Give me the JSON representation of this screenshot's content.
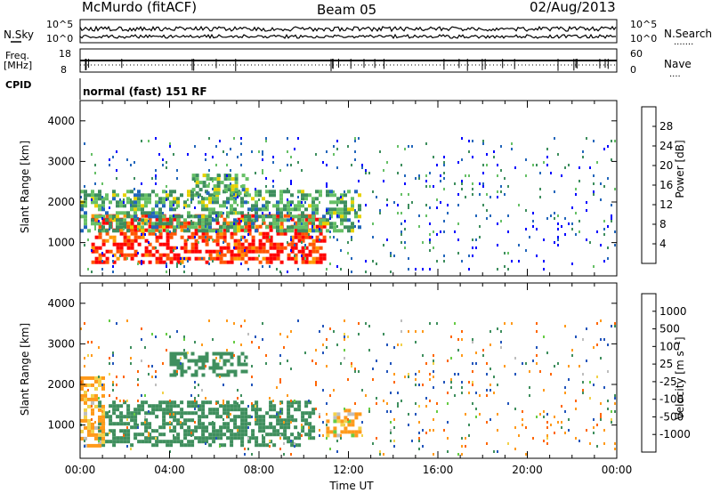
{
  "header": {
    "station": "McMurdo (fitACF)",
    "beam": "Beam 05",
    "date": "02/Aug/2013"
  },
  "noise_panel": {
    "left_label": "N.Sky",
    "right_label": "N.Search",
    "left_ticks": [
      "10^5",
      "10^0"
    ],
    "right_ticks": [
      "10^5",
      "10^0"
    ],
    "right_legend_dots": "......."
  },
  "freq_panel": {
    "left_label_line1": "Freq.",
    "left_label_line2": "[MHz]",
    "right_label": "Nave",
    "left_ticks": [
      "18",
      "8"
    ],
    "right_ticks": [
      "60",
      "0"
    ],
    "right_legend_dots": "...."
  },
  "cpid": {
    "label": "CPID",
    "value": "normal (fast) 151 RF"
  },
  "colors": {
    "power": [
      "#0000ff",
      "#2266bb",
      "#3e8e5e",
      "#66c066",
      "#e6d200",
      "#ff9900",
      "#ff5500",
      "#ff0000"
    ],
    "velocity": [
      "#ff0000",
      "#ff6600",
      "#ff9a1a",
      "#f2d24a",
      "#bebebe",
      "#66cc44",
      "#3f8f5e",
      "#2255bb",
      "#1111aa"
    ],
    "ground_scatter": "#bebebe"
  },
  "chart_data": [
    {
      "type": "heatmap",
      "name": "power",
      "ylabel": "Slant Range [km]",
      "xlabel": "",
      "xlim": [
        0,
        24
      ],
      "ylim": [
        180,
        4500
      ],
      "yticks": [
        1000,
        2000,
        3000,
        4000
      ],
      "xticks": [
        0,
        4,
        8,
        12,
        16,
        20,
        24
      ],
      "colorbar": {
        "label": "Power [dB]",
        "ticks": [
          "4",
          "8",
          "12",
          "16",
          "20",
          "24",
          "28"
        ],
        "range": [
          0,
          30
        ]
      },
      "features": [
        {
          "t0": 0.5,
          "t1": 11.0,
          "r0": 500,
          "r1": 1700,
          "level": 28
        },
        {
          "t0": 0.0,
          "t1": 12.5,
          "r0": 1300,
          "r1": 2300,
          "level": 12
        },
        {
          "t0": 5.0,
          "t1": 7.5,
          "r0": 2200,
          "r1": 2700,
          "level": 12
        },
        {
          "t0": 0.0,
          "t1": 24.0,
          "r0": 300,
          "r1": 3600,
          "level": 6
        }
      ]
    },
    {
      "type": "heatmap",
      "name": "velocity",
      "ylabel": "Slant Range [km]",
      "xlabel": "Time UT",
      "xlim": [
        0,
        24
      ],
      "ylim": [
        180,
        4500
      ],
      "yticks": [
        1000,
        2000,
        3000,
        4000
      ],
      "xticks": [
        0,
        4,
        8,
        12,
        16,
        20,
        24
      ],
      "xtick_labels": [
        "00:00",
        "04:00",
        "08:00",
        "12:00",
        "16:00",
        "20:00",
        "00:00"
      ],
      "colorbar": {
        "label": "Velocity [m s⁻¹]",
        "ticks": [
          "1000",
          "500",
          "100",
          "25",
          "-25",
          "-100",
          "-500",
          "-1000"
        ],
        "range": [
          -1000,
          1000
        ]
      },
      "features": [
        {
          "t0": 0.8,
          "t1": 10.5,
          "r0": 500,
          "r1": 1600,
          "level": 300
        },
        {
          "t0": 4.0,
          "t1": 7.5,
          "r0": 2200,
          "r1": 2800,
          "level": 300
        },
        {
          "t0": 0.0,
          "t1": 1.0,
          "r0": 500,
          "r1": 2200,
          "level": -200
        },
        {
          "t0": 11.0,
          "t1": 12.5,
          "r0": 700,
          "r1": 1400,
          "level": -150
        },
        {
          "t0": 0.0,
          "t1": 24.0,
          "r0": 300,
          "r1": 3600,
          "level": 0
        }
      ]
    }
  ]
}
